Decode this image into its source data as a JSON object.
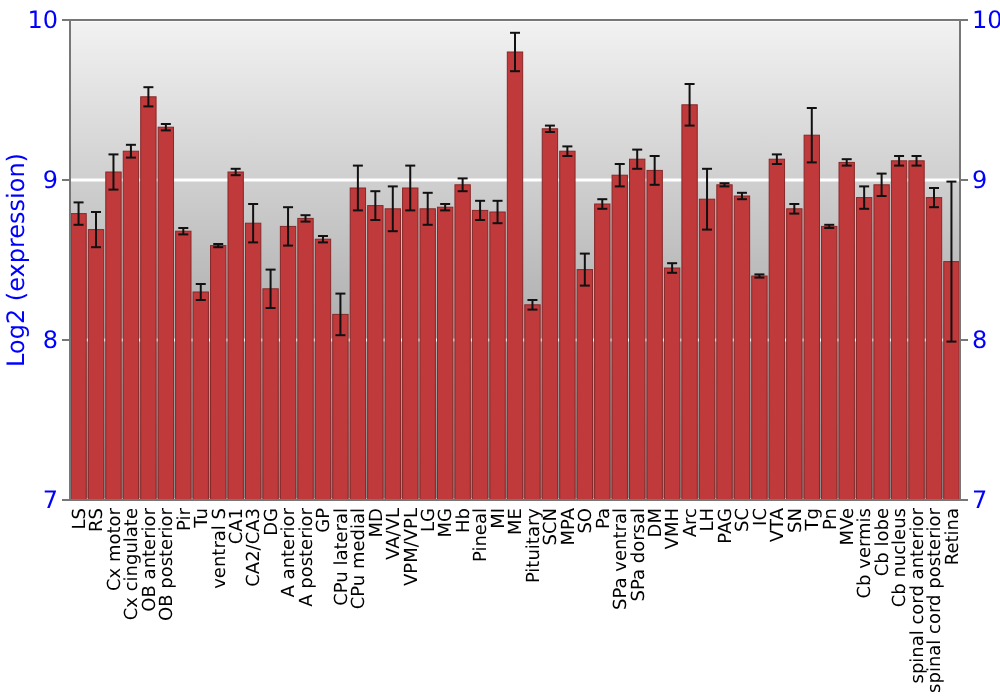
{
  "chart_data": {
    "type": "bar",
    "ylabel": "Log2 (expression)",
    "categories": [
      "LS",
      "RS",
      "Cx motor",
      "Cx cingulate",
      "OB anterior",
      "OB posterior",
      "Pir",
      "Tu",
      "ventral S",
      "CA1",
      "CA2/CA3",
      "DG",
      "A anterior",
      "A posterior",
      "GP",
      "CPu lateral",
      "CPu medial",
      "MD",
      "VA/VL",
      "VPM/VPL",
      "LG",
      "MG",
      "Hb",
      "Pineal",
      "MI",
      "ME",
      "Pituitary",
      "SCN",
      "MPA",
      "SO",
      "Pa",
      "SPa ventral",
      "SPa dorsal",
      "DM",
      "VMH",
      "Arc",
      "LH",
      "PAG",
      "SC",
      "IC",
      "VTA",
      "SN",
      "Tg",
      "Pn",
      "MVe",
      "Cb vermis",
      "Cb lobe",
      "Cb nucleus",
      "spinal cord anterior",
      "spinal cord posterior",
      "Retina"
    ],
    "values": [
      8.79,
      8.69,
      9.05,
      9.18,
      9.52,
      9.33,
      8.68,
      8.3,
      8.59,
      9.05,
      8.73,
      8.32,
      8.71,
      8.76,
      8.63,
      8.16,
      8.95,
      8.84,
      8.82,
      8.95,
      8.82,
      8.83,
      8.97,
      8.81,
      8.8,
      9.8,
      8.22,
      9.32,
      9.18,
      8.44,
      8.85,
      9.03,
      9.13,
      9.06,
      8.45,
      9.47,
      8.88,
      8.97,
      8.9,
      8.4,
      9.13,
      8.82,
      9.28,
      8.71,
      9.11,
      8.89,
      8.97,
      9.12,
      9.12,
      8.89,
      8.49
    ],
    "errors": [
      0.07,
      0.11,
      0.11,
      0.04,
      0.06,
      0.02,
      0.02,
      0.05,
      0.01,
      0.02,
      0.12,
      0.12,
      0.12,
      0.02,
      0.02,
      0.13,
      0.14,
      0.09,
      0.14,
      0.14,
      0.1,
      0.02,
      0.04,
      0.06,
      0.07,
      0.12,
      0.03,
      0.02,
      0.03,
      0.1,
      0.03,
      0.07,
      0.06,
      0.09,
      0.03,
      0.13,
      0.19,
      0.01,
      0.02,
      0.01,
      0.03,
      0.03,
      0.17,
      0.01,
      0.02,
      0.07,
      0.07,
      0.03,
      0.03,
      0.06,
      0.5
    ],
    "color": "#c0393b",
    "ylim": [
      7,
      10
    ],
    "yticks": [
      7,
      8,
      9,
      10
    ],
    "y2lim": [
      7,
      10
    ],
    "y2ticks": [
      7,
      8,
      9,
      10
    ],
    "grid": "y"
  }
}
